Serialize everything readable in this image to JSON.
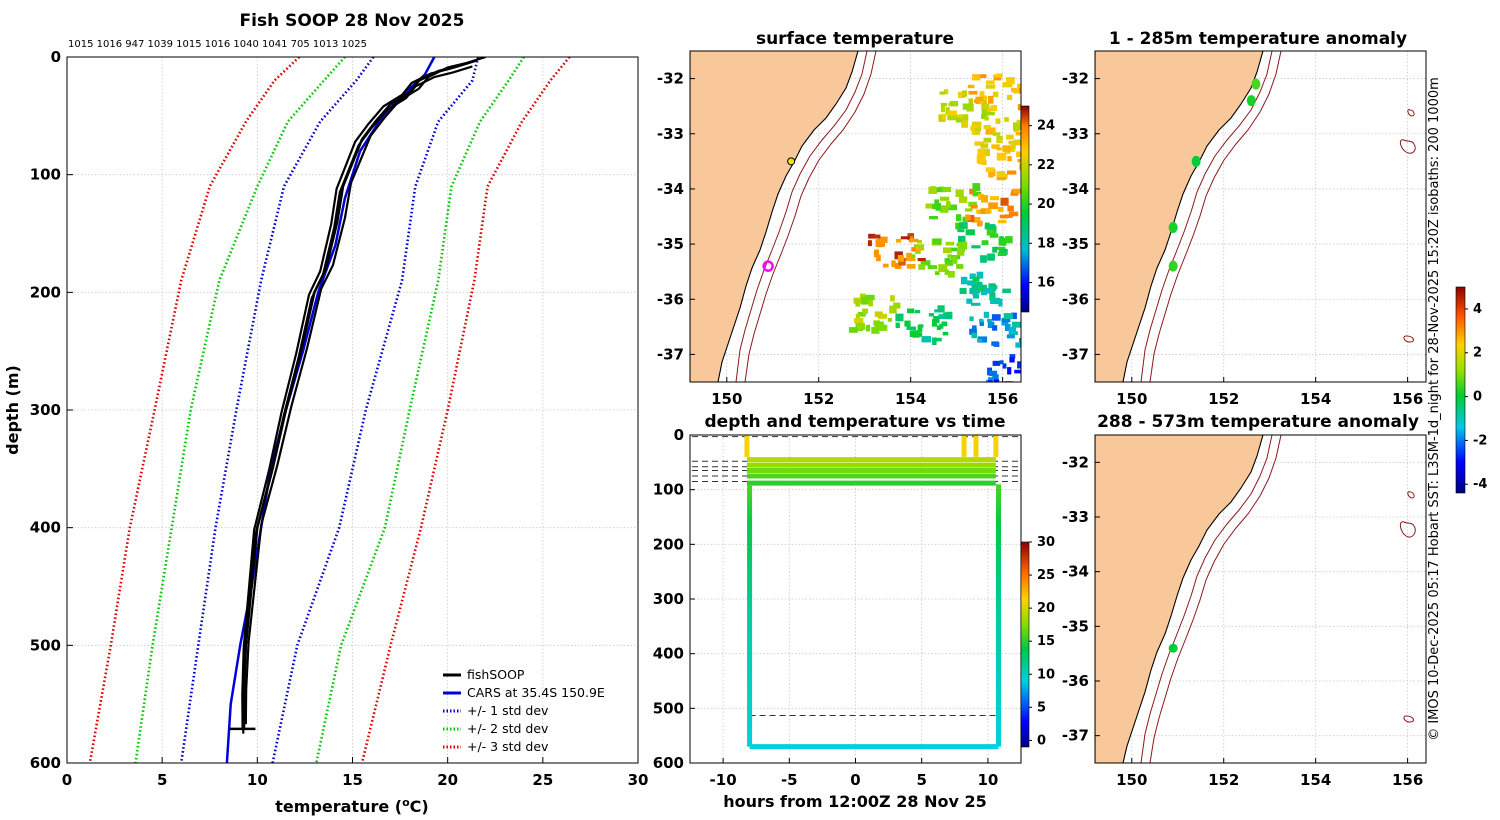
{
  "chart_data": [
    {
      "type": "line",
      "title": "Fish SOOP 28 Nov 2025",
      "xlabel": "temperature (oC)",
      "ylabel": "depth (m)",
      "xlim": [
        0,
        30
      ],
      "ylim": [
        600,
        0
      ],
      "xticks": [
        "0",
        "5",
        "10",
        "15",
        "20",
        "25",
        "30"
      ],
      "yticks": [
        "0",
        "100",
        "200",
        "300",
        "400",
        "500",
        "600"
      ],
      "top_annotation": "1015 1016 947 1039 1015 1016 1040 1041 705 1013 1025",
      "legend": [
        "fishSOOP",
        "CARS at 35.4S 150.9E",
        "+/- 1 std dev",
        "+/- 2 std dev",
        "+/- 3 std dev"
      ],
      "series": [
        {
          "name": "CARS at 35.4S 150.9E",
          "color": "#0000dd",
          "style": "solid",
          "points": [
            [
              19.3,
              0
            ],
            [
              18.8,
              15
            ],
            [
              17.8,
              30
            ],
            [
              16.6,
              50
            ],
            [
              15.4,
              80
            ],
            [
              14.6,
              120
            ],
            [
              14.1,
              160
            ],
            [
              13.2,
              200
            ],
            [
              12.4,
              250
            ],
            [
              11.5,
              300
            ],
            [
              10.7,
              350
            ],
            [
              10.2,
              400
            ],
            [
              9.7,
              450
            ],
            [
              9.1,
              500
            ],
            [
              8.6,
              550
            ],
            [
              8.4,
              600
            ]
          ]
        },
        {
          "name": "fishSOOP",
          "color": "#000000",
          "style": "solid",
          "points": [
            [
              21.5,
              3
            ],
            [
              20.5,
              8
            ],
            [
              19.5,
              12
            ],
            [
              18.5,
              20
            ],
            [
              18.0,
              30
            ],
            [
              17.0,
              40
            ],
            [
              16.2,
              55
            ],
            [
              15.5,
              70
            ],
            [
              15.0,
              90
            ],
            [
              14.5,
              110
            ],
            [
              14.2,
              140
            ],
            [
              13.6,
              180
            ],
            [
              13.0,
              200
            ],
            [
              12.3,
              250
            ],
            [
              11.5,
              300
            ],
            [
              10.8,
              350
            ],
            [
              10.0,
              400
            ],
            [
              9.7,
              450
            ],
            [
              9.4,
              500
            ],
            [
              9.3,
              540
            ],
            [
              9.3,
              570
            ]
          ]
        },
        {
          "name": "+/- 1 std dev",
          "color": "#0000cc",
          "style": "dotted",
          "points": [
            [
              16.1,
              0
            ],
            [
              15.2,
              20
            ],
            [
              13.3,
              55
            ],
            [
              11.4,
              110
            ],
            [
              10.2,
              190
            ],
            [
              8.9,
              300
            ],
            [
              7.8,
              400
            ],
            [
              6.9,
              500
            ],
            [
              6.0,
              600
            ]
          ]
        },
        {
          "name": "+/- 1 std dev",
          "color": "#0000cc",
          "style": "dotted",
          "points": [
            [
              21.6,
              0
            ],
            [
              21.3,
              20
            ],
            [
              19.5,
              55
            ],
            [
              18.3,
              110
            ],
            [
              17.6,
              190
            ],
            [
              15.7,
              300
            ],
            [
              14.3,
              400
            ],
            [
              12.1,
              500
            ],
            [
              10.8,
              600
            ]
          ]
        },
        {
          "name": "+/- 2 std dev",
          "color": "#00c800",
          "style": "dotted",
          "points": [
            [
              14.6,
              0
            ],
            [
              13.5,
              20
            ],
            [
              11.6,
              55
            ],
            [
              10.0,
              110
            ],
            [
              8.0,
              190
            ],
            [
              6.5,
              300
            ],
            [
              5.5,
              400
            ],
            [
              4.5,
              500
            ],
            [
              3.6,
              600
            ]
          ]
        },
        {
          "name": "+/- 2 std dev",
          "color": "#00c800",
          "style": "dotted",
          "points": [
            [
              24.0,
              0
            ],
            [
              23.2,
              20
            ],
            [
              21.7,
              55
            ],
            [
              20.2,
              110
            ],
            [
              19.5,
              190
            ],
            [
              18.0,
              300
            ],
            [
              16.7,
              400
            ],
            [
              14.4,
              500
            ],
            [
              13.1,
              600
            ]
          ]
        },
        {
          "name": "+/- 3 std dev",
          "color": "#dd0000",
          "style": "dotted",
          "points": [
            [
              12.2,
              0
            ],
            [
              10.9,
              20
            ],
            [
              9.4,
              55
            ],
            [
              7.5,
              110
            ],
            [
              6.0,
              190
            ],
            [
              4.6,
              300
            ],
            [
              3.3,
              400
            ],
            [
              2.3,
              500
            ],
            [
              1.2,
              600
            ]
          ]
        },
        {
          "name": "+/- 3 std dev",
          "color": "#dd0000",
          "style": "dotted",
          "points": [
            [
              26.4,
              0
            ],
            [
              25.4,
              20
            ],
            [
              23.9,
              55
            ],
            [
              22.1,
              110
            ],
            [
              21.4,
              190
            ],
            [
              20.0,
              300
            ],
            [
              18.6,
              400
            ],
            [
              17.0,
              500
            ],
            [
              15.5,
              600
            ]
          ]
        }
      ]
    },
    {
      "type": "heatmap",
      "title": "surface temperature",
      "xlim": [
        149.2,
        156.4
      ],
      "ylim": [
        -37.5,
        -31.5
      ],
      "xticks": [
        "150",
        "152",
        "154",
        "156"
      ],
      "yticks": [
        "-32",
        "-33",
        "-34",
        "-35",
        "-36",
        "-37"
      ],
      "colorbar": {
        "range": [
          14.5,
          25
        ],
        "ticks": [
          "16",
          "18",
          "20",
          "22",
          "24"
        ]
      },
      "sst_patches": [
        {
          "lon": 155.8,
          "lat": -32.2,
          "value": 23
        },
        {
          "lon": 155.1,
          "lat": -32.5,
          "value": 22
        },
        {
          "lon": 155.8,
          "lat": -33.0,
          "value": 22.5
        },
        {
          "lon": 156.0,
          "lat": -33.5,
          "value": 23
        },
        {
          "lon": 154.8,
          "lat": -34.2,
          "value": 21
        },
        {
          "lon": 155.7,
          "lat": -34.3,
          "value": 23.5
        },
        {
          "lon": 155.5,
          "lat": -34.9,
          "value": 19.5
        },
        {
          "lon": 154.5,
          "lat": -35.2,
          "value": 21
        },
        {
          "lon": 153.6,
          "lat": -35.1,
          "value": 24
        },
        {
          "lon": 155.5,
          "lat": -35.8,
          "value": 18.5
        },
        {
          "lon": 153.2,
          "lat": -36.2,
          "value": 21.5
        },
        {
          "lon": 154.2,
          "lat": -36.4,
          "value": 19
        },
        {
          "lon": 155.8,
          "lat": -36.5,
          "value": 17.5
        },
        {
          "lon": 156.2,
          "lat": -37.3,
          "value": 16.5
        }
      ],
      "markers": [
        {
          "label": "start",
          "lon": 151.4,
          "lat": -33.5,
          "color": "#e8e800"
        },
        {
          "label": "CARS location",
          "lon": 150.9,
          "lat": -35.4,
          "color": "#ff00ff"
        }
      ]
    },
    {
      "type": "scatter",
      "title": "depth and temperature vs time",
      "xlabel": "hours from 12:00Z 28 Nov 25",
      "xlim": [
        -12.5,
        12.5
      ],
      "ylim": [
        600,
        0
      ],
      "xticks": [
        "-10",
        "-5",
        "0",
        "5",
        "10"
      ],
      "yticks": [
        "0",
        "100",
        "200",
        "300",
        "400",
        "500",
        "600"
      ],
      "colorbar": {
        "range": [
          -1,
          30
        ],
        "ticks": [
          "0",
          "5",
          "10",
          "15",
          "20",
          "25",
          "30"
        ]
      },
      "dashed_depths": [
        3,
        48,
        58,
        65,
        75,
        85,
        513
      ],
      "tracks": [
        {
          "hours": [
            -8.2,
            10.6
          ],
          "depth": 45,
          "temperature": 19
        },
        {
          "hours": [
            -8.2,
            10.6
          ],
          "depth": 55,
          "temperature": 18
        },
        {
          "hours": [
            -8.2,
            10.6
          ],
          "depth": 65,
          "temperature": 17
        },
        {
          "hours": [
            -8.2,
            10.6
          ],
          "depth": 75,
          "temperature": 16
        },
        {
          "hours": [
            -8.2,
            10.6
          ],
          "depth": 88,
          "temperature": 15
        },
        {
          "hours": [
            -8.0,
            10.8
          ],
          "depth": 570,
          "temperature": 9
        },
        {
          "hours": [
            -8.0,
            -8.0
          ],
          "depth_range": [
            90,
            570
          ],
          "temperature": 12
        },
        {
          "hours": [
            10.8,
            10.8
          ],
          "depth_range": [
            90,
            570
          ],
          "temperature": 12
        },
        {
          "hours": [
            -8.2,
            -8.2
          ],
          "depth_range": [
            0,
            40
          ],
          "temperature": 21
        },
        {
          "hours": [
            8.2,
            8.2
          ],
          "depth_range": [
            0,
            40
          ],
          "temperature": 21
        },
        {
          "hours": [
            9.1,
            9.1
          ],
          "depth_range": [
            0,
            40
          ],
          "temperature": 21
        },
        {
          "hours": [
            10.6,
            10.6
          ],
          "depth_range": [
            0,
            40
          ],
          "temperature": 21
        }
      ]
    },
    {
      "type": "heatmap",
      "title": "1 - 285m temperature anomaly",
      "xlim": [
        149.2,
        156.4
      ],
      "ylim": [
        -37.5,
        -31.5
      ],
      "yticks": [
        "-32",
        "-33",
        "-34",
        "-35",
        "-36",
        "-37"
      ],
      "anomaly_points": [
        {
          "lon": 152.7,
          "lat": -32.1,
          "value": 0.6
        },
        {
          "lon": 152.6,
          "lat": -32.4,
          "value": 0.2
        },
        {
          "lon": 151.4,
          "lat": -33.5,
          "value": 0.0
        },
        {
          "lon": 150.9,
          "lat": -34.7,
          "value": 0.2
        },
        {
          "lon": 150.9,
          "lat": -35.4,
          "value": 0.4
        }
      ]
    },
    {
      "type": "heatmap",
      "title": "288 - 573m temperature anomaly",
      "xlim": [
        149.2,
        156.4
      ],
      "ylim": [
        -37.5,
        -31.5
      ],
      "xticks": [
        "150",
        "152",
        "154",
        "156"
      ],
      "yticks": [
        "-32",
        "-33",
        "-34",
        "-35",
        "-36",
        "-37"
      ],
      "colorbar": {
        "range": [
          -4.4,
          5
        ],
        "ticks": [
          "-4",
          "-2",
          "0",
          "2",
          "4"
        ]
      },
      "anomaly_points": [
        {
          "lon": 150.9,
          "lat": -35.4,
          "value": 0.0
        }
      ]
    }
  ],
  "side_note": "© IMOS 10-Dec-2025 05:17 Hobart SST: L3SM-1d_night for 28-Nov-2025 15:20Z isobaths: 200  1000m"
}
